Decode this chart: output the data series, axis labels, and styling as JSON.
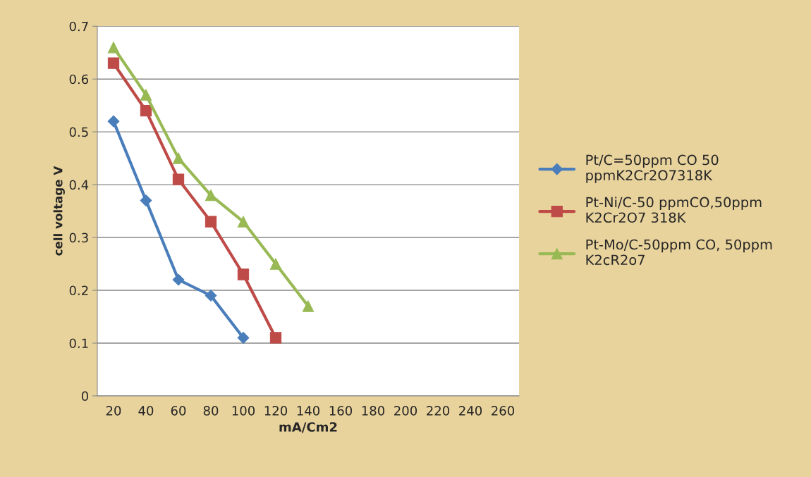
{
  "chart_data": {
    "type": "line",
    "xlabel": "mA/Cm2",
    "ylabel": "cell voltage V",
    "categories": [
      "20",
      "40",
      "60",
      "80",
      "100",
      "120",
      "140",
      "160",
      "180",
      "200",
      "220",
      "240",
      "260"
    ],
    "series": [
      {
        "name": "Pt/C=50ppm CO 50\nppmK2Cr2O7318K",
        "color": "#4a7ebb",
        "marker": "diamond",
        "values": [
          0.52,
          0.37,
          0.22,
          0.19,
          0.11,
          null,
          null,
          null,
          null,
          null,
          null,
          null,
          null
        ]
      },
      {
        "name": "Pt-Ni/C-50 ppmCO,50ppm\nK2Cr2O7 318K",
        "color": "#be4b48",
        "marker": "square",
        "values": [
          0.63,
          0.54,
          0.41,
          0.33,
          0.23,
          0.11,
          null,
          null,
          null,
          null,
          null,
          null,
          null
        ]
      },
      {
        "name": "Pt-Mo/C-50ppm CO, 50ppm\nK2cR2o7",
        "color": "#98b954",
        "marker": "triangle",
        "values": [
          0.66,
          0.57,
          0.45,
          0.38,
          0.33,
          0.25,
          0.17,
          null,
          null,
          null,
          null,
          null,
          null
        ]
      }
    ],
    "ylim": [
      0,
      0.7
    ],
    "yticks": [
      0,
      0.1,
      0.2,
      0.3,
      0.4,
      0.5,
      0.6,
      0.7
    ],
    "grid": "y",
    "legend": "right",
    "line_style": "solid"
  }
}
